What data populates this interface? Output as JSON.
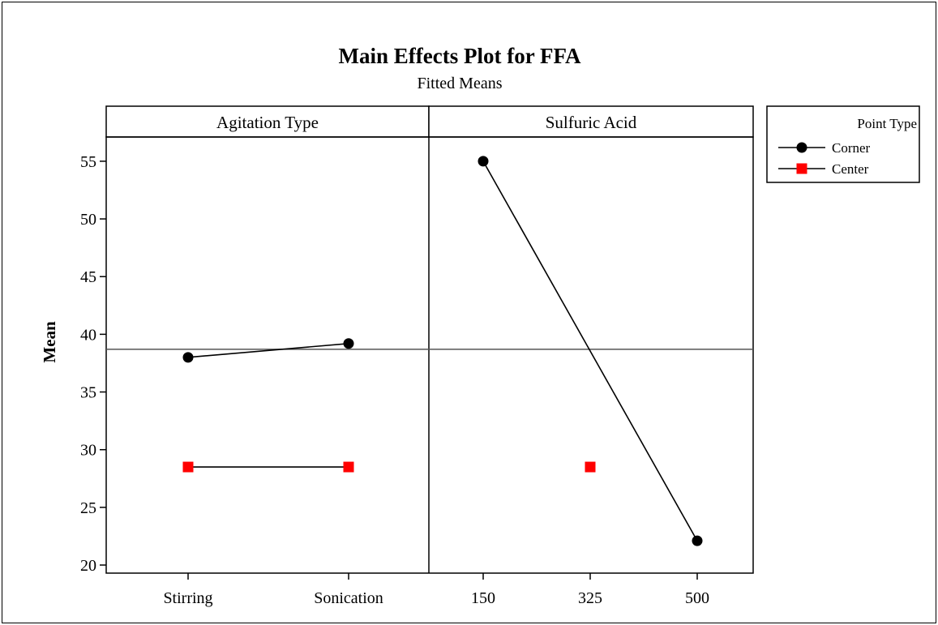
{
  "chart_data": {
    "type": "line",
    "title": "Main Effects Plot for FFA",
    "subtitle": "Fitted Means",
    "ylabel": "Mean",
    "ylim": [
      19.3,
      57.1
    ],
    "yticks": [
      20,
      25,
      30,
      35,
      40,
      45,
      50,
      55
    ],
    "overall_mean": 38.7,
    "grid": false,
    "legend": {
      "title": "Point Type",
      "placement": "right",
      "entries": [
        {
          "name": "Corner",
          "marker": "circle",
          "color": "#000000"
        },
        {
          "name": "Center",
          "marker": "square",
          "color": "#ff0000"
        }
      ]
    },
    "panels": [
      {
        "factor": "Agitation Type",
        "categories": [
          "Stirring",
          "Sonication"
        ],
        "series": [
          {
            "name": "Corner",
            "x": [
              "Stirring",
              "Sonication"
            ],
            "values": [
              38.0,
              39.2
            ]
          },
          {
            "name": "Center",
            "x": [
              "Stirring",
              "Sonication"
            ],
            "values": [
              28.5,
              28.5
            ]
          }
        ]
      },
      {
        "factor": "Sulfuric Acid",
        "categories": [
          "150",
          "325",
          "500"
        ],
        "series": [
          {
            "name": "Corner",
            "x": [
              "150",
              "500"
            ],
            "values": [
              55.0,
              22.1
            ]
          },
          {
            "name": "Center",
            "x": [
              "325"
            ],
            "values": [
              28.5
            ]
          }
        ]
      }
    ]
  }
}
